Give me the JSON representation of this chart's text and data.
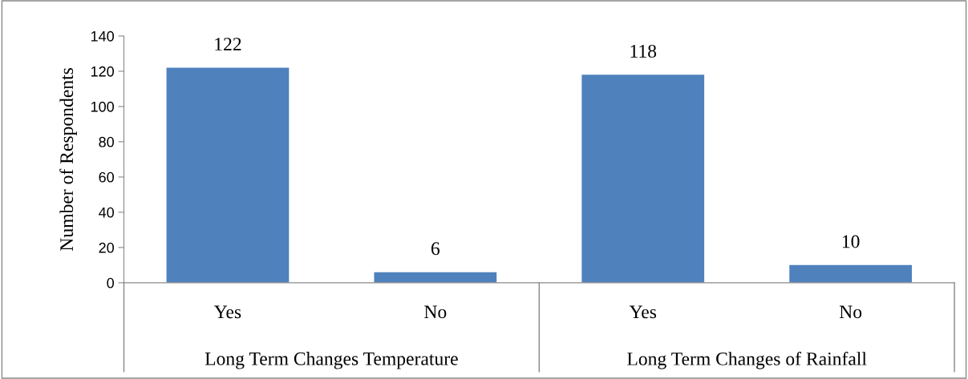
{
  "chart_data": {
    "type": "bar",
    "ylabel": "Number of Respondents",
    "categories": [
      "Yes",
      "No",
      "Yes",
      "No"
    ],
    "values": [
      122,
      6,
      118,
      10
    ],
    "color": "#4f81bd",
    "ylim": [
      0,
      140
    ],
    "yticks": [
      0,
      20,
      40,
      60,
      80,
      100,
      120,
      140
    ],
    "grid": false,
    "data_labels": true,
    "annotations": [
      "Long Term Changes Temperature",
      "Long Term Changes of Rainfall"
    ]
  }
}
